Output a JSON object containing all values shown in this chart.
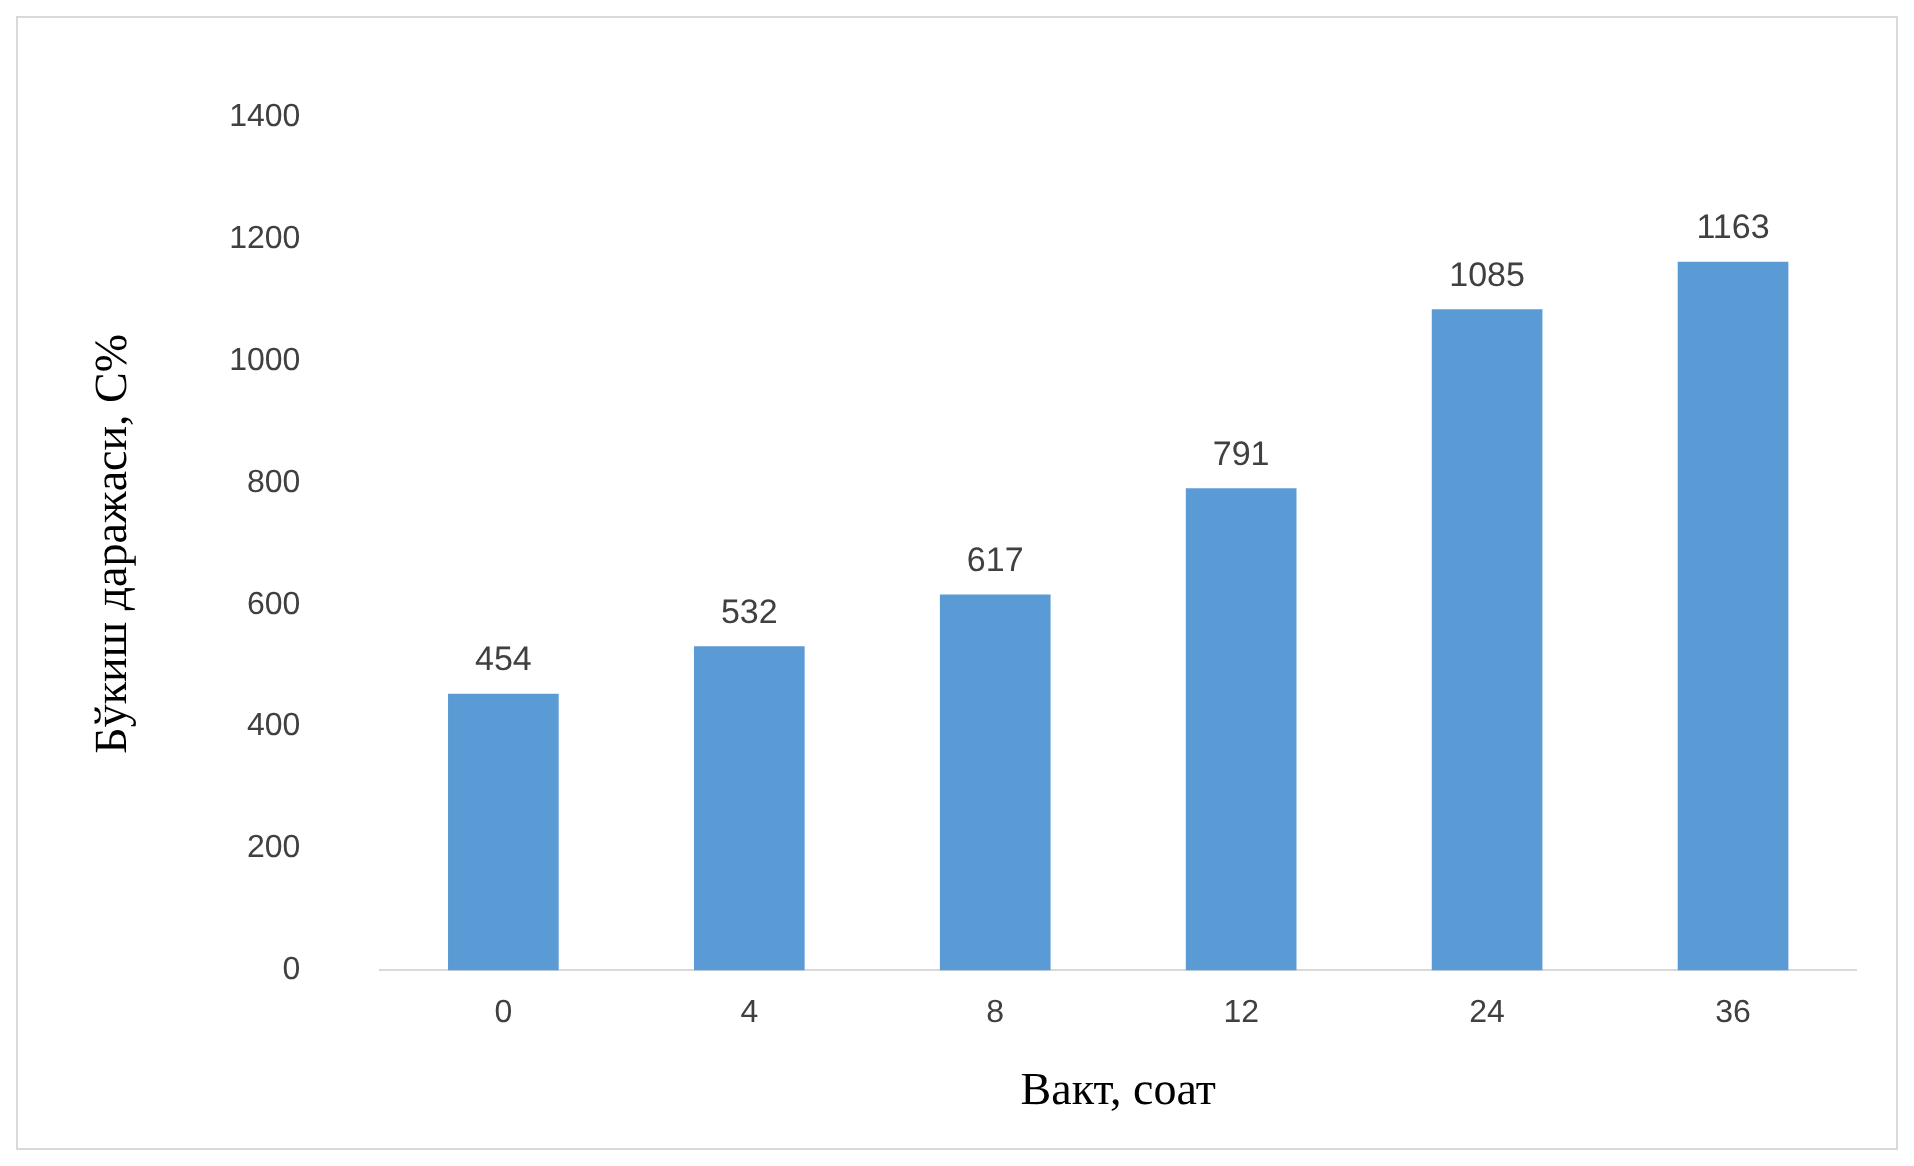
{
  "chart_data": {
    "type": "bar",
    "xlabel": "Вакт, соат",
    "ylabel": "Бўкиш даражаси, С%",
    "categories": [
      "0",
      "4",
      "8",
      "12",
      "24",
      "36"
    ],
    "values": [
      454,
      532,
      617,
      791,
      1085,
      1163
    ],
    "color": "#5b9bd5",
    "ylim": [
      0,
      1400
    ],
    "yticks": [
      0,
      200,
      400,
      600,
      800,
      1000,
      1200,
      1400
    ],
    "grid": false,
    "data_labels": true,
    "legend": false
  }
}
